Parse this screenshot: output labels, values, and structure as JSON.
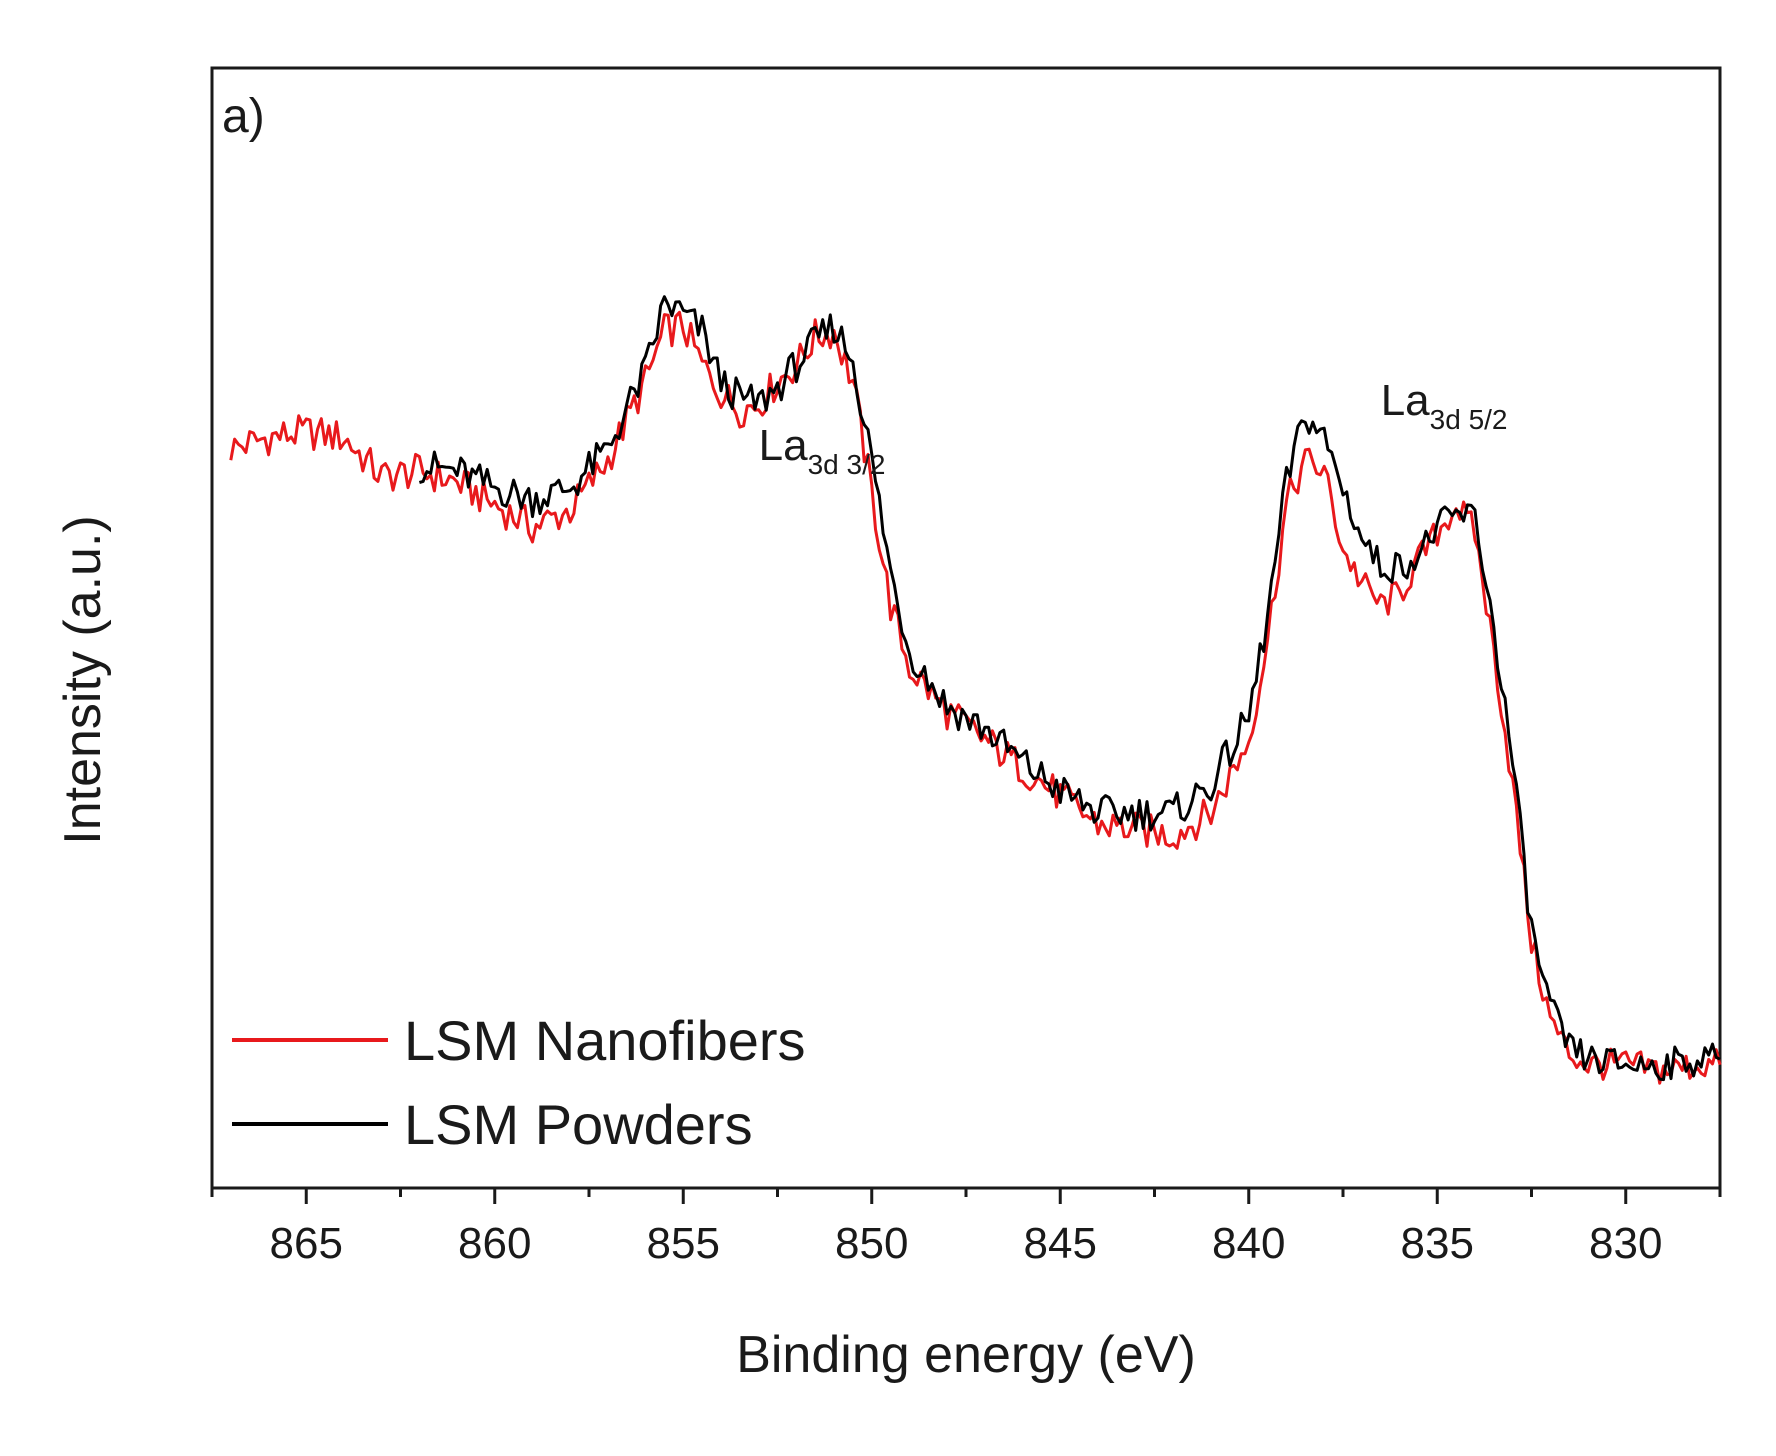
{
  "chart_data": {
    "type": "line",
    "panel_label": "a)",
    "xlabel": "Binding energy (eV)",
    "ylabel": "Intensity (a.u.)",
    "xlim": [
      867.5,
      827.5
    ],
    "ylim": [
      0,
      100
    ],
    "x_reversed": true,
    "grid": false,
    "x_ticks": [
      865,
      860,
      855,
      850,
      845,
      840,
      835,
      830
    ],
    "x_tick_labels": [
      "865",
      "860",
      "855",
      "850",
      "845",
      "840",
      "835",
      "830"
    ],
    "legend": {
      "position": "bottom-left",
      "entries": [
        "LSM Nanofibers",
        "LSM Powders"
      ]
    },
    "annotations": [
      {
        "text": "La",
        "subscript": "3d 3/2",
        "x": 853.0,
        "y": 65
      },
      {
        "text": "La",
        "subscript": "3d 5/2",
        "x": 836.5,
        "y": 69
      }
    ],
    "series": [
      {
        "name": "LSM Nanofibers",
        "color": "#e8191c",
        "x": [
          867.0,
          866.0,
          865.0,
          864.0,
          863.0,
          862.0,
          861.0,
          860.0,
          859.0,
          858.0,
          857.0,
          856.0,
          855.5,
          855.0,
          854.5,
          854.0,
          853.5,
          853.0,
          852.5,
          852.0,
          851.5,
          851.0,
          850.5,
          850.0,
          849.5,
          849.0,
          848.0,
          847.0,
          846.0,
          845.0,
          844.0,
          843.0,
          842.0,
          841.0,
          840.0,
          839.5,
          839.0,
          838.5,
          838.0,
          837.5,
          837.0,
          836.5,
          836.0,
          835.5,
          835.0,
          834.5,
          834.0,
          833.5,
          833.0,
          832.5,
          832.0,
          831.5,
          831.0,
          830.0,
          829.0,
          828.0,
          827.5
        ],
        "y": [
          66.0,
          67.0,
          67.5,
          67.0,
          63.5,
          64.0,
          63.0,
          61.0,
          59.0,
          60.5,
          65.0,
          72.0,
          76.5,
          77.0,
          73.5,
          71.0,
          69.5,
          70.0,
          72.0,
          73.5,
          76.0,
          76.5,
          72.0,
          62.0,
          52.0,
          46.5,
          42.5,
          40.0,
          37.5,
          35.0,
          32.5,
          32.0,
          31.5,
          33.5,
          40.0,
          49.0,
          61.0,
          65.0,
          64.0,
          57.0,
          54.0,
          52.0,
          53.0,
          56.0,
          58.5,
          61.0,
          58.5,
          48.0,
          36.0,
          22.0,
          15.0,
          12.0,
          11.0,
          11.0,
          10.5,
          11.0,
          11.0
        ]
      },
      {
        "name": "LSM Powders",
        "color": "#000000",
        "x": [
          862.0,
          861.0,
          860.0,
          859.0,
          858.0,
          857.0,
          856.0,
          855.5,
          855.0,
          854.5,
          854.0,
          853.5,
          853.0,
          852.5,
          852.0,
          851.5,
          851.0,
          850.5,
          850.0,
          849.5,
          849.0,
          848.0,
          847.0,
          846.0,
          845.0,
          844.0,
          843.0,
          842.0,
          841.0,
          840.0,
          839.5,
          839.0,
          838.5,
          838.0,
          837.5,
          837.0,
          836.5,
          836.0,
          835.5,
          835.0,
          834.5,
          834.0,
          833.5,
          833.0,
          832.5,
          832.0,
          831.5,
          831.0,
          830.0,
          829.0,
          828.0,
          827.5
        ],
        "y": [
          64.5,
          64.0,
          62.5,
          61.5,
          62.5,
          66.0,
          73.0,
          79.0,
          78.0,
          76.5,
          72.0,
          70.5,
          70.0,
          71.5,
          73.5,
          75.5,
          77.0,
          74.0,
          65.0,
          55.0,
          48.0,
          43.0,
          41.0,
          38.0,
          35.5,
          33.5,
          33.5,
          33.5,
          36.0,
          42.0,
          51.0,
          63.0,
          69.0,
          67.0,
          62.5,
          58.0,
          55.5,
          55.5,
          56.5,
          59.0,
          60.0,
          60.0,
          50.0,
          38.0,
          23.0,
          16.0,
          12.5,
          11.5,
          11.0,
          11.0,
          11.5,
          11.5
        ]
      }
    ]
  }
}
